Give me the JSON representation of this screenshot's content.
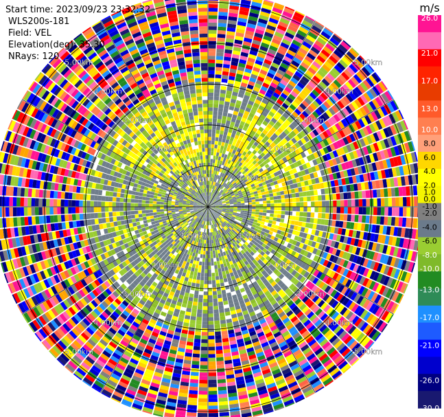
{
  "header": {
    "start_time": "Start time: 2023/09/23 23:32:32",
    "instrument": "WLS200s-181",
    "field": "Field: VEL",
    "elevation": "Elevation(deg): 35.30",
    "nrays": "NRays: 120"
  },
  "chart_data": {
    "type": "heatmap",
    "projection": "polar-ppi",
    "rays": 120,
    "range_rings_km": [
      1.0,
      2.0,
      3.0,
      4.0,
      5.0
    ],
    "ring_labels": [
      "1.00km",
      "2.00km",
      "3.00km",
      "4.00km",
      "5.00km"
    ],
    "colorbar": {
      "unit": "m/s",
      "ticks": [
        "26.0",
        "21.0",
        "17.0",
        "13.0",
        "10.0",
        "8.0",
        "6.0",
        "4.0",
        "2.0",
        "1.0",
        "0.0",
        "-1.0",
        "-2.0",
        "-4.0",
        "-6.0",
        "-8.0",
        "-10.0",
        "-13.0",
        "-17.0",
        "-21.0",
        "-26.0",
        "-30.0"
      ],
      "colors": [
        "#ff1493",
        "#ff69b4",
        "#ff0000",
        "#ff2400",
        "#e83c00",
        "#ff5a2a",
        "#ff7f50",
        "#ffa07a",
        "#ffd700",
        "#ffff00",
        "#f5f500",
        "#808080",
        "#6b7b8b",
        "#9acd32",
        "#7fba2a",
        "#228b22",
        "#2e8b57",
        "#1e90ff",
        "#1e5bff",
        "#0000ff",
        "#0000cd",
        "#000080",
        "#191970"
      ],
      "range": [
        -30,
        26.4
      ]
    },
    "zones": [
      {
        "r_km": [
          0,
          0.35
        ],
        "mix": "gray-near"
      },
      {
        "r_km": [
          0.35,
          3.05
        ],
        "mix": "gray-green-yellow"
      },
      {
        "r_km": [
          3.05,
          5.25
        ],
        "mix": "noise-all-colors"
      }
    ]
  }
}
